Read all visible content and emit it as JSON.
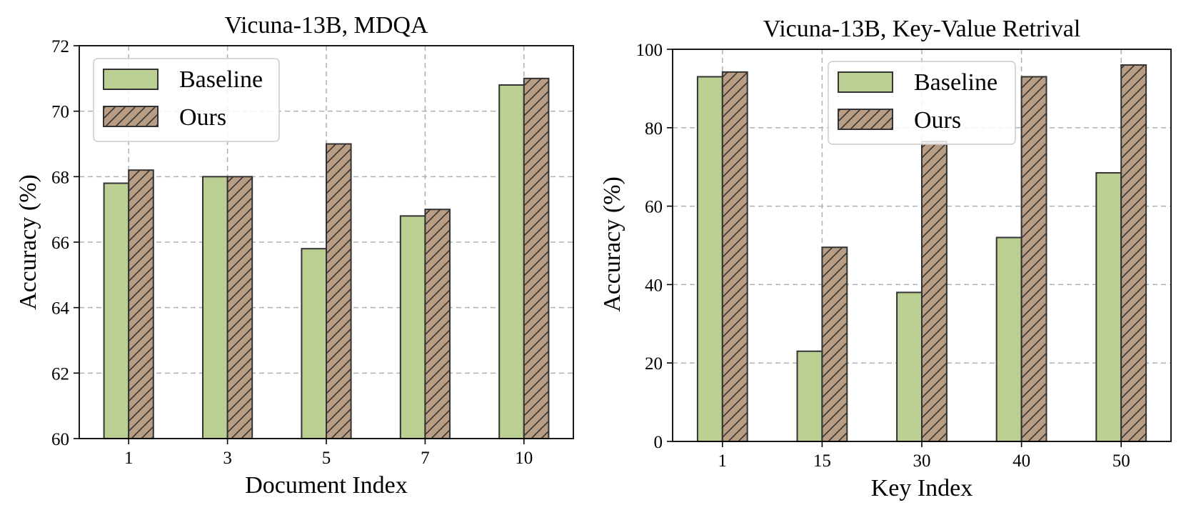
{
  "colors": {
    "baseline_fill": "#bccf93",
    "ours_fill": "#b89c83",
    "edge": "#333333",
    "grid": "#b0b0b0",
    "hatch": "#333333"
  },
  "chart_data": [
    {
      "type": "bar",
      "title": "Vicuna-13B, MDQA",
      "xlabel": "Document Index",
      "ylabel": "Accuracy (%)",
      "categories": [
        "1",
        "3",
        "5",
        "7",
        "10"
      ],
      "ylim": [
        60,
        72
      ],
      "yticks": [
        "60",
        "62",
        "64",
        "66",
        "68",
        "70",
        "72"
      ],
      "grid": true,
      "legend_position": "top-left",
      "series": [
        {
          "name": "Baseline",
          "values": [
            67.8,
            68.0,
            65.8,
            66.8,
            70.8
          ]
        },
        {
          "name": "Ours",
          "values": [
            68.2,
            68.0,
            69.0,
            67.0,
            71.0
          ]
        }
      ]
    },
    {
      "type": "bar",
      "title": "Vicuna-13B, Key-Value Retrival",
      "xlabel": "Key Index",
      "ylabel": "Accuracy (%)",
      "categories": [
        "1",
        "15",
        "30",
        "40",
        "50"
      ],
      "ylim": [
        0,
        100
      ],
      "yticks": [
        "0",
        "20",
        "40",
        "60",
        "80",
        "100"
      ],
      "grid": true,
      "legend_position": "top-center",
      "series": [
        {
          "name": "Baseline",
          "values": [
            93.0,
            23.0,
            38.0,
            52.0,
            68.5
          ]
        },
        {
          "name": "Ours",
          "values": [
            94.2,
            49.5,
            76.5,
            93.0,
            96.0
          ]
        }
      ]
    }
  ]
}
